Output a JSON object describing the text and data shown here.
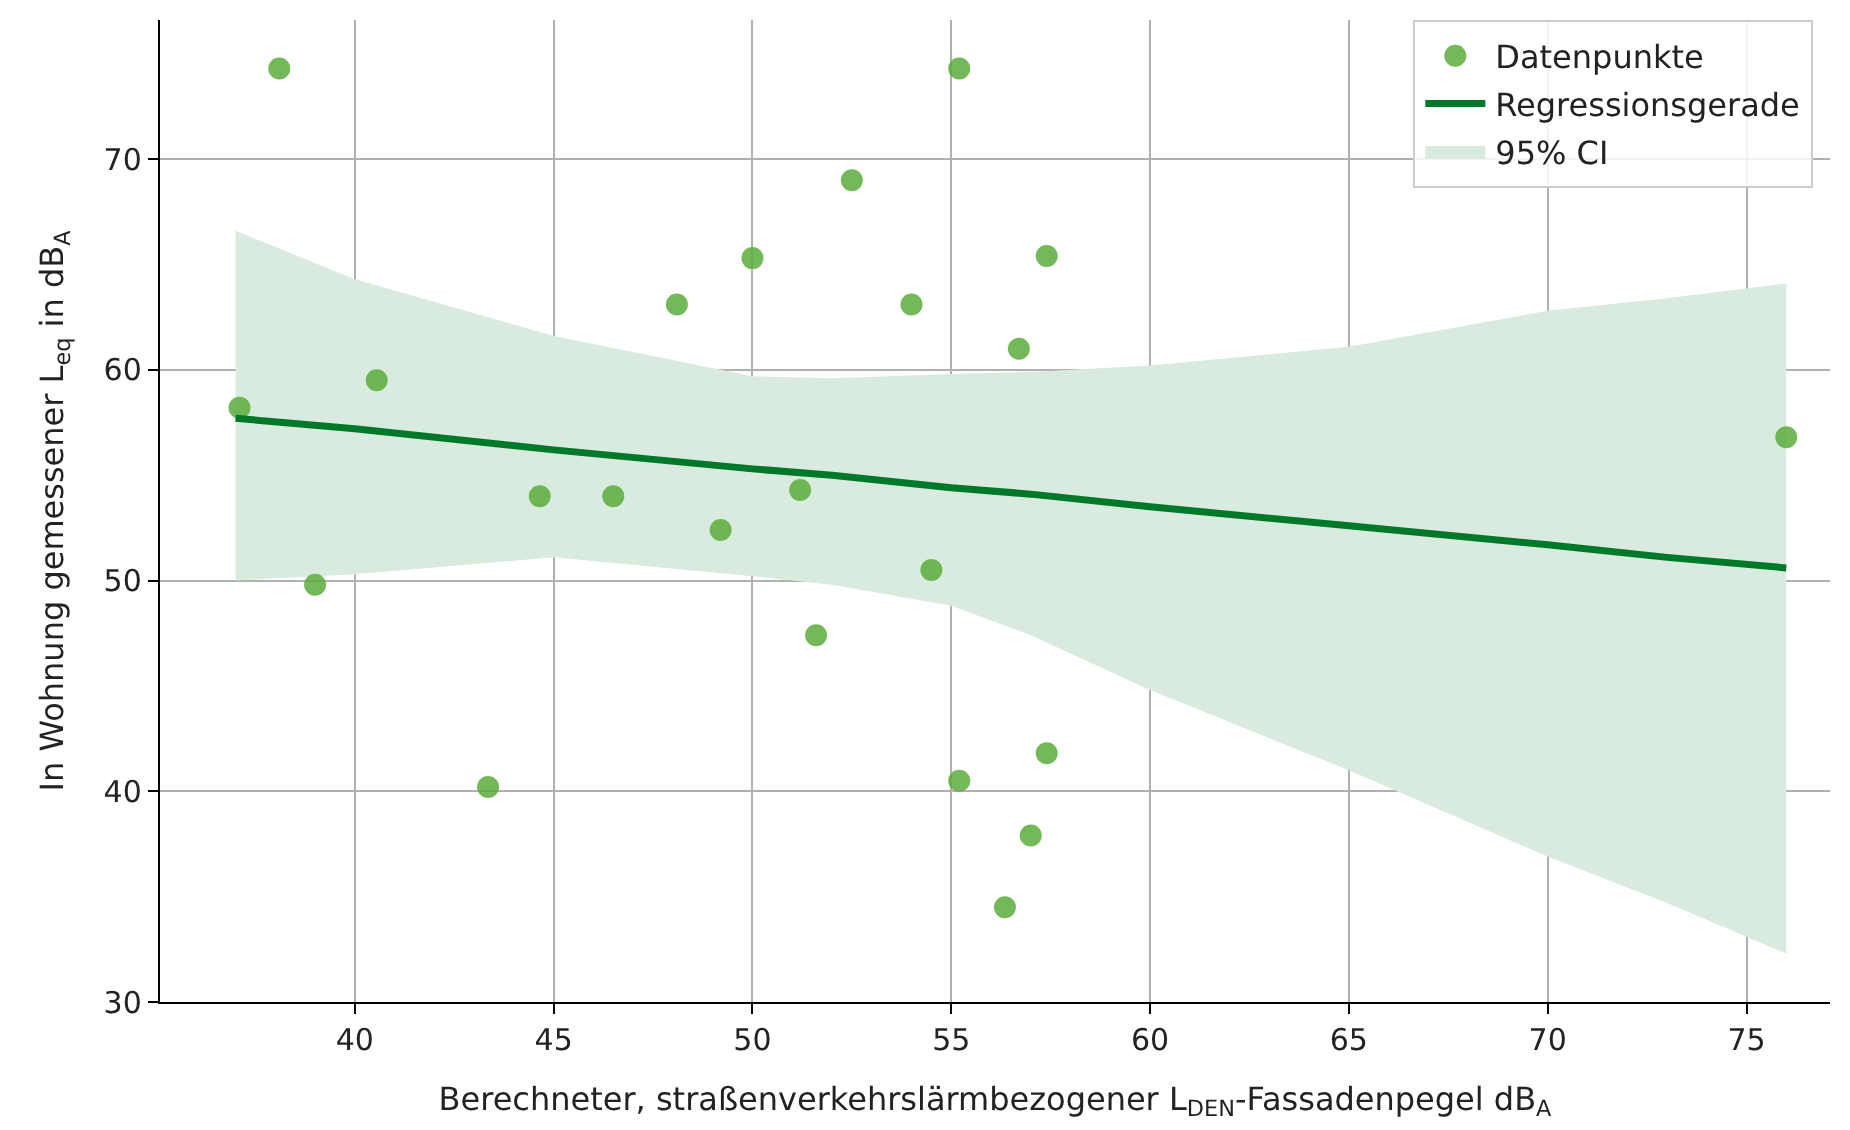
{
  "chart_data": {
    "type": "scatter",
    "xlabel": "Berechneter, straßenverkehrslärmbezogener L$_{DEN}$-Fassadenpegel dB$_{A}$",
    "ylabel": "In Wohnung gemessener L$_{eq}$ in dB$_{A}$",
    "xlim": [
      35.1,
      77.1
    ],
    "xticks": [
      40,
      45,
      50,
      55,
      60,
      65,
      70,
      75
    ],
    "ylim": [
      30,
      76.6
    ],
    "yticks": [
      30,
      40,
      50,
      60,
      70
    ],
    "grid": true,
    "legend": "top right",
    "marker": "circle",
    "series": [
      {
        "name": "Datenpunkte",
        "color": "#5aad3c",
        "x": [
          38.1,
          37.1,
          40.55,
          39.0,
          43.35,
          44.65,
          46.5,
          48.1,
          49.2,
          50.0,
          51.2,
          51.6,
          52.5,
          54.0,
          54.5,
          55.2,
          55.2,
          56.7,
          57.4,
          57.4,
          57.0,
          56.35,
          76.0
        ],
        "values": [
          74.3,
          58.2,
          59.5,
          49.8,
          40.2,
          54.0,
          54.0,
          63.1,
          52.4,
          65.3,
          54.3,
          47.4,
          69.0,
          63.1,
          50.5,
          74.3,
          40.5,
          61.0,
          65.4,
          41.8,
          37.9,
          34.5,
          56.8
        ]
      },
      {
        "name": "Regressionsgerade",
        "type": "line",
        "marker": "none",
        "color": "#00782a",
        "x": [
          37,
          40,
          45,
          50,
          52,
          55,
          57,
          60,
          65,
          70,
          73,
          76
        ],
        "values": [
          57.7,
          57.2,
          56.2,
          55.3,
          55.0,
          54.4,
          54.1,
          53.5,
          52.6,
          51.7,
          51.1,
          50.6
        ],
        "lower": [
          50.0,
          50.3,
          51.1,
          50.2,
          49.8,
          48.8,
          47.4,
          44.8,
          41.0,
          36.9,
          34.7,
          32.3
        ],
        "upper": [
          66.6,
          64.3,
          61.6,
          59.7,
          59.6,
          59.8,
          59.9,
          60.2,
          61.1,
          62.8,
          63.4,
          64.1
        ]
      },
      {
        "name": "95% CI",
        "type": "area",
        "color": "#d9ebdf"
      }
    ]
  }
}
